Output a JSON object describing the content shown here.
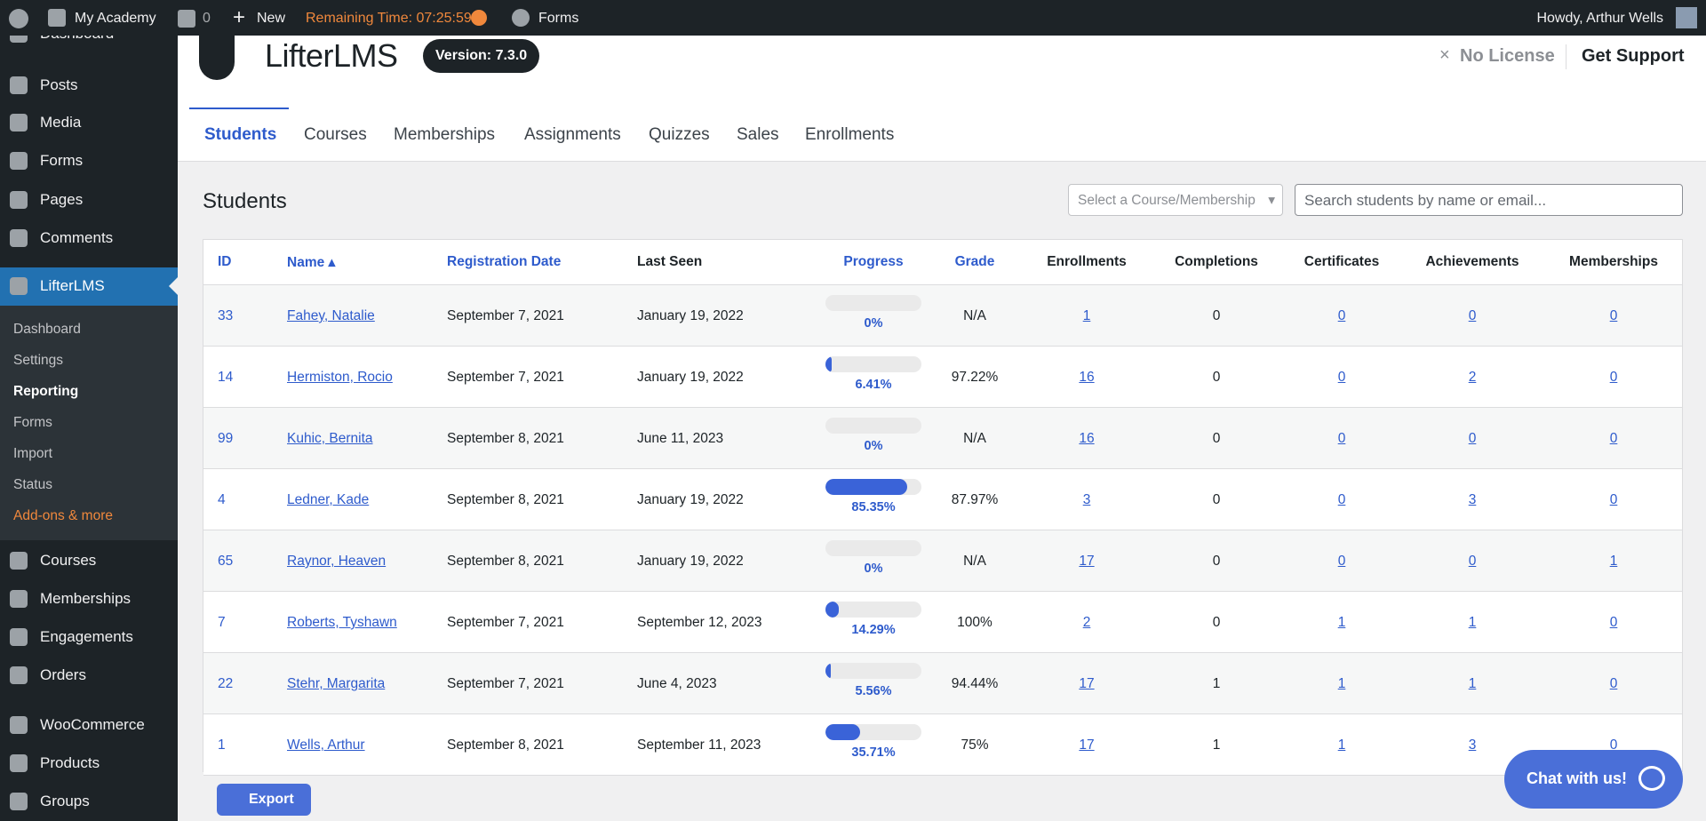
{
  "admin_bar": {
    "site": "My Academy",
    "comments": "0",
    "new": "New",
    "remaining": "Remaining Time: 07:25:59",
    "forms": "Forms",
    "howdy": "Howdy, Arthur Wells"
  },
  "sidebar": {
    "top": [
      "Dashboard",
      "Posts",
      "Media",
      "Forms",
      "Pages",
      "Comments"
    ],
    "active": "LifterLMS",
    "submenu": [
      "Dashboard",
      "Settings",
      "Reporting",
      "Forms",
      "Import",
      "Status",
      "Add-ons & more"
    ],
    "bottom": [
      "Courses",
      "Memberships",
      "Engagements",
      "Orders",
      "WooCommerce",
      "Products",
      "Groups"
    ]
  },
  "header": {
    "logo": "LifterLMS",
    "version": "Version: 7.3.0",
    "license": "No License",
    "support": "Get Support"
  },
  "tabs": [
    "Students",
    "Courses",
    "Memberships",
    "Assignments",
    "Quizzes",
    "Sales",
    "Enrollments"
  ],
  "page": {
    "title": "Students",
    "select": "Select a Course/Membership",
    "search": "Search students by name or email..."
  },
  "table": {
    "columns": [
      "ID",
      "Name",
      "Registration Date",
      "Last Seen",
      "Progress",
      "Grade",
      "Enrollments",
      "Completions",
      "Certificates",
      "Achievements",
      "Memberships"
    ],
    "rows": [
      [
        "33",
        "Fahey, Natalie",
        "September 7, 2021",
        "January 19, 2022",
        "0%",
        "N/A",
        "1",
        "0",
        "0",
        "0",
        "0"
      ],
      [
        "14",
        "Hermiston, Rocio",
        "September 7, 2021",
        "January 19, 2022",
        "6.41%",
        "97.22%",
        "16",
        "0",
        "0",
        "2",
        "0"
      ],
      [
        "99",
        "Kuhic, Bernita",
        "September 8, 2021",
        "June 11, 2023",
        "0%",
        "N/A",
        "16",
        "0",
        "0",
        "0",
        "0"
      ],
      [
        "4",
        "Ledner, Kade",
        "September 8, 2021",
        "January 19, 2022",
        "85.35%",
        "87.97%",
        "3",
        "0",
        "0",
        "3",
        "0"
      ],
      [
        "65",
        "Raynor, Heaven",
        "September 8, 2021",
        "January 19, 2022",
        "0%",
        "N/A",
        "17",
        "0",
        "0",
        "0",
        "1"
      ],
      [
        "7",
        "Roberts, Tyshawn",
        "September 7, 2021",
        "September 12, 2023",
        "14.29%",
        "100%",
        "2",
        "0",
        "1",
        "1",
        "0"
      ],
      [
        "22",
        "Stehr, Margarita",
        "September 7, 2021",
        "June 4, 2023",
        "5.56%",
        "94.44%",
        "17",
        "1",
        "1",
        "1",
        "0"
      ],
      [
        "1",
        "Wells, Arthur",
        "September 8, 2021",
        "September 11, 2023",
        "35.71%",
        "75%",
        "17",
        "1",
        "1",
        "3",
        "0"
      ]
    ]
  },
  "export": "Export",
  "chat": "Chat with us!"
}
